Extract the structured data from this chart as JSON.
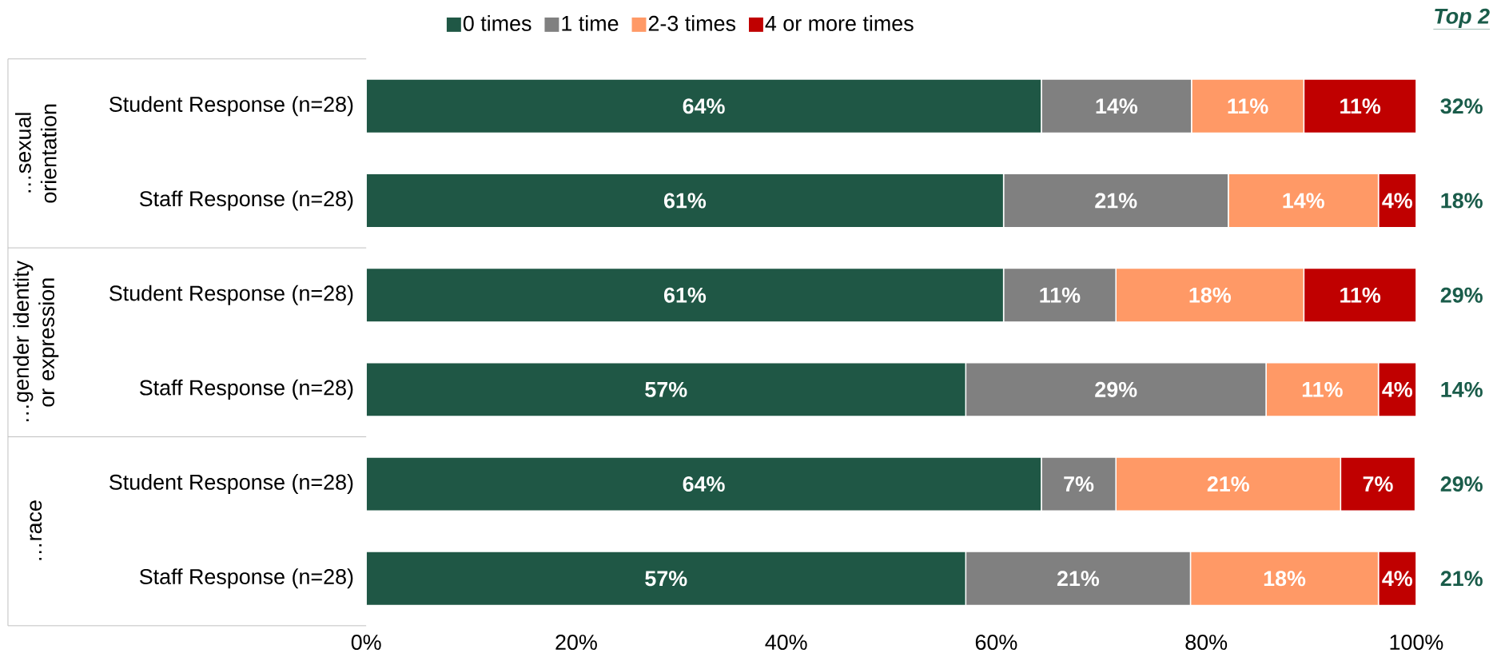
{
  "chart_data": {
    "type": "bar",
    "orientation": "horizontal",
    "stacked": true,
    "legend": "top",
    "categories": [
      "Student Response (n=28)",
      "Staff Response (n=28)",
      "Student Response (n=28)",
      "Staff Response (n=28)",
      "Student Response (n=28)",
      "Staff Response (n=28)"
    ],
    "series": [
      {
        "name": "0 times",
        "color": "#1f5745",
        "values": [
          64.3,
          60.7,
          60.7,
          57.1,
          64.3,
          57.1
        ],
        "value_labels": [
          "64%",
          "61%",
          "61%",
          "57%",
          "64%",
          "57%"
        ]
      },
      {
        "name": "1 time",
        "color": "#808080",
        "values": [
          14.3,
          21.4,
          10.7,
          28.6,
          7.1,
          21.4
        ],
        "value_labels": [
          "14%",
          "21%",
          "11%",
          "29%",
          "7%",
          "21%"
        ]
      },
      {
        "name": "2-3 times",
        "color": "#ff9966",
        "values": [
          10.7,
          14.3,
          17.9,
          10.7,
          21.4,
          17.9
        ],
        "value_labels": [
          "11%",
          "14%",
          "18%",
          "11%",
          "21%",
          "18%"
        ]
      },
      {
        "name": "4 or more times",
        "color": "#c00000",
        "values": [
          10.7,
          3.6,
          10.7,
          3.6,
          7.1,
          3.6
        ],
        "value_labels": [
          "11%",
          "4%",
          "11%",
          "4%",
          "7%",
          "4%"
        ]
      }
    ],
    "xlim": [
      0,
      100
    ],
    "xticks": [
      {
        "value": 0,
        "label": "0%"
      },
      {
        "value": 20,
        "label": "20%"
      },
      {
        "value": 40,
        "label": "40%"
      },
      {
        "value": 60,
        "label": "60%"
      },
      {
        "value": 80,
        "label": "80%"
      },
      {
        "value": 100,
        "label": "100%"
      }
    ],
    "annotations": [
      "…sexual orientation",
      "…gender identity or expression",
      "…race",
      "Top 2",
      "32%",
      "18%",
      "29%",
      "14%",
      "29%",
      "21%"
    ]
  }
}
